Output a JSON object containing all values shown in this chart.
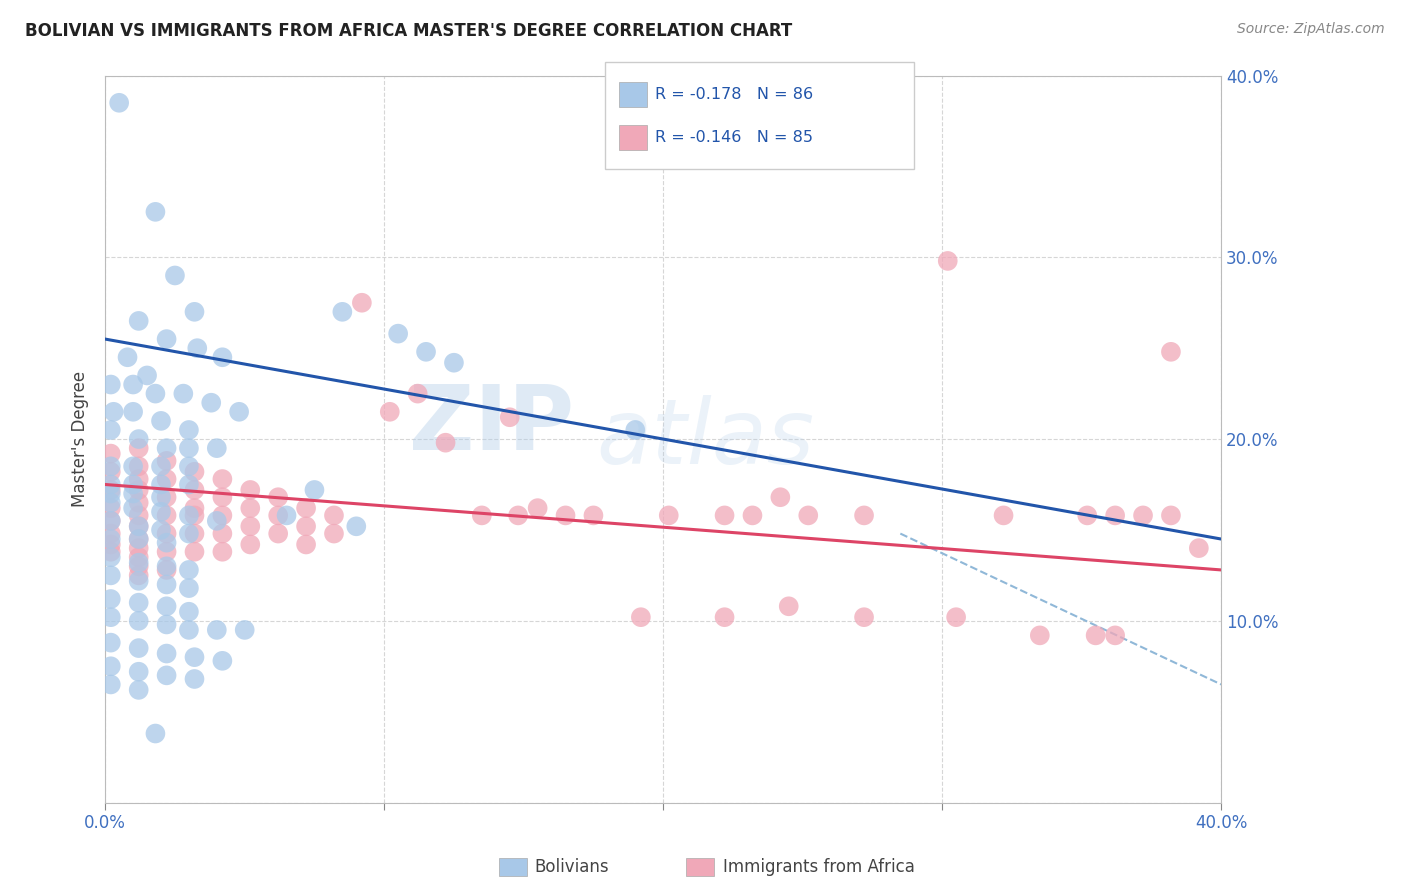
{
  "title": "BOLIVIAN VS IMMIGRANTS FROM AFRICA MASTER'S DEGREE CORRELATION CHART",
  "source": "Source: ZipAtlas.com",
  "ylabel": "Master's Degree",
  "xlim": [
    0.0,
    0.4
  ],
  "ylim": [
    0.0,
    0.4
  ],
  "blue_color": "#a8c8e8",
  "pink_color": "#f0a8b8",
  "blue_line_color": "#2255aa",
  "pink_line_color": "#dd4466",
  "dashed_line_color": "#90b8d8",
  "watermark": "ZIPatlas",
  "blue_line": {
    "x0": 0.0,
    "y0": 0.255,
    "x1": 0.4,
    "y1": 0.145
  },
  "pink_line": {
    "x0": 0.0,
    "y0": 0.175,
    "x1": 0.4,
    "y1": 0.128
  },
  "dash_line": {
    "x0": 0.285,
    "y0": 0.148,
    "x1": 0.4,
    "y1": 0.065
  },
  "blue_dots": [
    [
      0.005,
      0.385
    ],
    [
      0.018,
      0.325
    ],
    [
      0.025,
      0.29
    ],
    [
      0.032,
      0.27
    ],
    [
      0.012,
      0.265
    ],
    [
      0.022,
      0.255
    ],
    [
      0.033,
      0.25
    ],
    [
      0.042,
      0.245
    ],
    [
      0.008,
      0.245
    ],
    [
      0.015,
      0.235
    ],
    [
      0.002,
      0.23
    ],
    [
      0.01,
      0.23
    ],
    [
      0.018,
      0.225
    ],
    [
      0.028,
      0.225
    ],
    [
      0.038,
      0.22
    ],
    [
      0.048,
      0.215
    ],
    [
      0.003,
      0.215
    ],
    [
      0.01,
      0.215
    ],
    [
      0.02,
      0.21
    ],
    [
      0.03,
      0.205
    ],
    [
      0.002,
      0.205
    ],
    [
      0.012,
      0.2
    ],
    [
      0.022,
      0.195
    ],
    [
      0.03,
      0.195
    ],
    [
      0.04,
      0.195
    ],
    [
      0.002,
      0.185
    ],
    [
      0.01,
      0.185
    ],
    [
      0.02,
      0.185
    ],
    [
      0.03,
      0.185
    ],
    [
      0.002,
      0.175
    ],
    [
      0.01,
      0.175
    ],
    [
      0.02,
      0.175
    ],
    [
      0.03,
      0.175
    ],
    [
      0.002,
      0.17
    ],
    [
      0.01,
      0.17
    ],
    [
      0.02,
      0.168
    ],
    [
      0.002,
      0.165
    ],
    [
      0.01,
      0.162
    ],
    [
      0.02,
      0.16
    ],
    [
      0.03,
      0.158
    ],
    [
      0.04,
      0.155
    ],
    [
      0.002,
      0.155
    ],
    [
      0.012,
      0.152
    ],
    [
      0.02,
      0.15
    ],
    [
      0.03,
      0.148
    ],
    [
      0.002,
      0.145
    ],
    [
      0.012,
      0.145
    ],
    [
      0.022,
      0.143
    ],
    [
      0.002,
      0.135
    ],
    [
      0.012,
      0.132
    ],
    [
      0.022,
      0.13
    ],
    [
      0.03,
      0.128
    ],
    [
      0.002,
      0.125
    ],
    [
      0.012,
      0.122
    ],
    [
      0.022,
      0.12
    ],
    [
      0.03,
      0.118
    ],
    [
      0.002,
      0.112
    ],
    [
      0.012,
      0.11
    ],
    [
      0.022,
      0.108
    ],
    [
      0.03,
      0.105
    ],
    [
      0.002,
      0.102
    ],
    [
      0.012,
      0.1
    ],
    [
      0.022,
      0.098
    ],
    [
      0.03,
      0.095
    ],
    [
      0.04,
      0.095
    ],
    [
      0.05,
      0.095
    ],
    [
      0.002,
      0.088
    ],
    [
      0.012,
      0.085
    ],
    [
      0.022,
      0.082
    ],
    [
      0.032,
      0.08
    ],
    [
      0.042,
      0.078
    ],
    [
      0.002,
      0.075
    ],
    [
      0.012,
      0.072
    ],
    [
      0.022,
      0.07
    ],
    [
      0.032,
      0.068
    ],
    [
      0.002,
      0.065
    ],
    [
      0.012,
      0.062
    ],
    [
      0.085,
      0.27
    ],
    [
      0.105,
      0.258
    ],
    [
      0.115,
      0.248
    ],
    [
      0.125,
      0.242
    ],
    [
      0.19,
      0.205
    ],
    [
      0.075,
      0.172
    ],
    [
      0.065,
      0.158
    ],
    [
      0.09,
      0.152
    ],
    [
      0.018,
      0.038
    ]
  ],
  "pink_dots": [
    [
      0.002,
      0.192
    ],
    [
      0.002,
      0.182
    ],
    [
      0.002,
      0.172
    ],
    [
      0.002,
      0.162
    ],
    [
      0.002,
      0.155
    ],
    [
      0.002,
      0.148
    ],
    [
      0.002,
      0.142
    ],
    [
      0.002,
      0.138
    ],
    [
      0.012,
      0.195
    ],
    [
      0.012,
      0.185
    ],
    [
      0.012,
      0.178
    ],
    [
      0.012,
      0.172
    ],
    [
      0.012,
      0.165
    ],
    [
      0.012,
      0.158
    ],
    [
      0.012,
      0.152
    ],
    [
      0.012,
      0.145
    ],
    [
      0.012,
      0.14
    ],
    [
      0.012,
      0.135
    ],
    [
      0.012,
      0.13
    ],
    [
      0.012,
      0.125
    ],
    [
      0.022,
      0.188
    ],
    [
      0.022,
      0.178
    ],
    [
      0.022,
      0.168
    ],
    [
      0.022,
      0.158
    ],
    [
      0.022,
      0.148
    ],
    [
      0.022,
      0.138
    ],
    [
      0.022,
      0.128
    ],
    [
      0.032,
      0.182
    ],
    [
      0.032,
      0.172
    ],
    [
      0.032,
      0.162
    ],
    [
      0.032,
      0.158
    ],
    [
      0.032,
      0.148
    ],
    [
      0.032,
      0.138
    ],
    [
      0.042,
      0.178
    ],
    [
      0.042,
      0.168
    ],
    [
      0.042,
      0.158
    ],
    [
      0.042,
      0.148
    ],
    [
      0.042,
      0.138
    ],
    [
      0.052,
      0.172
    ],
    [
      0.052,
      0.162
    ],
    [
      0.052,
      0.152
    ],
    [
      0.052,
      0.142
    ],
    [
      0.062,
      0.168
    ],
    [
      0.062,
      0.158
    ],
    [
      0.062,
      0.148
    ],
    [
      0.072,
      0.162
    ],
    [
      0.072,
      0.152
    ],
    [
      0.072,
      0.142
    ],
    [
      0.082,
      0.158
    ],
    [
      0.082,
      0.148
    ],
    [
      0.092,
      0.275
    ],
    [
      0.102,
      0.215
    ],
    [
      0.112,
      0.225
    ],
    [
      0.122,
      0.198
    ],
    [
      0.135,
      0.158
    ],
    [
      0.145,
      0.212
    ],
    [
      0.148,
      0.158
    ],
    [
      0.155,
      0.162
    ],
    [
      0.165,
      0.158
    ],
    [
      0.175,
      0.158
    ],
    [
      0.202,
      0.158
    ],
    [
      0.222,
      0.158
    ],
    [
      0.232,
      0.158
    ],
    [
      0.242,
      0.168
    ],
    [
      0.252,
      0.158
    ],
    [
      0.272,
      0.158
    ],
    [
      0.302,
      0.298
    ],
    [
      0.322,
      0.158
    ],
    [
      0.352,
      0.158
    ],
    [
      0.362,
      0.158
    ],
    [
      0.362,
      0.092
    ],
    [
      0.372,
      0.158
    ],
    [
      0.382,
      0.158
    ],
    [
      0.392,
      0.14
    ],
    [
      0.192,
      0.102
    ],
    [
      0.222,
      0.102
    ],
    [
      0.245,
      0.108
    ],
    [
      0.272,
      0.102
    ],
    [
      0.305,
      0.102
    ],
    [
      0.335,
      0.092
    ],
    [
      0.355,
      0.092
    ],
    [
      0.382,
      0.248
    ]
  ]
}
